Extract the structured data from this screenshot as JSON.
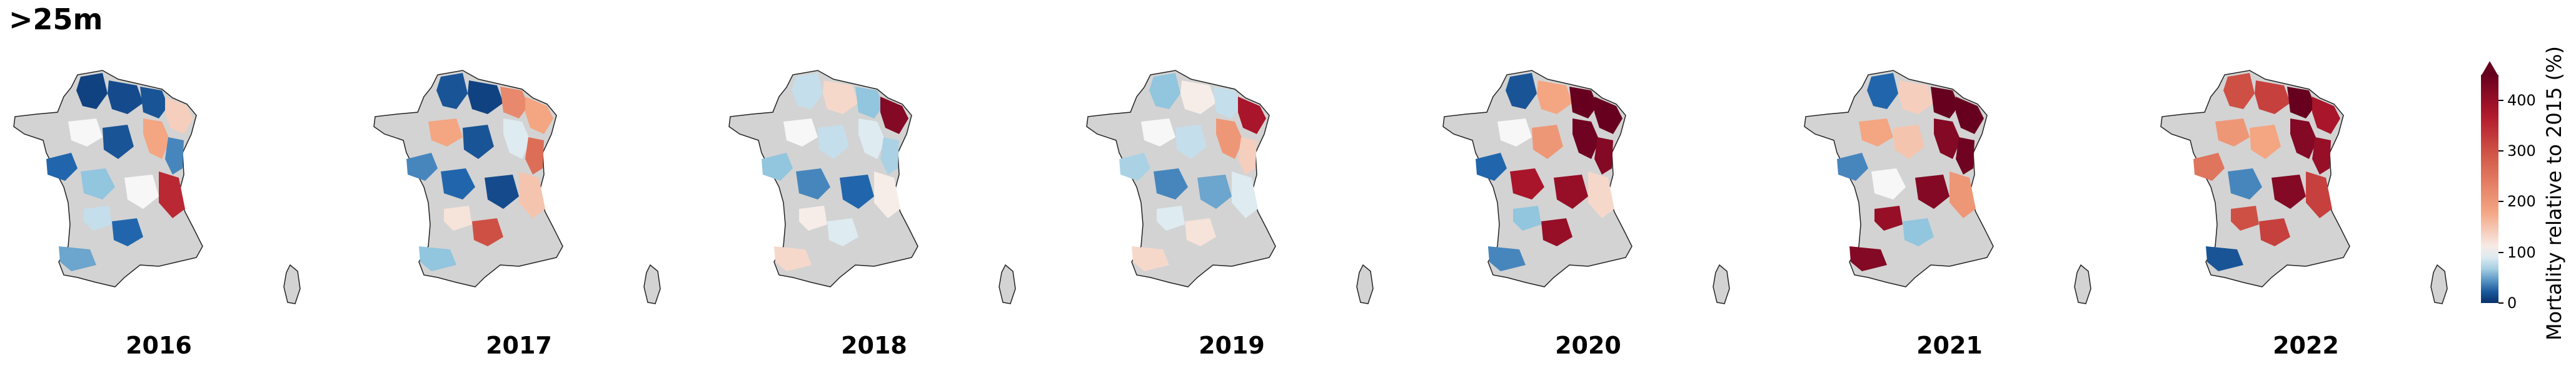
{
  "title": ">25m",
  "panels": [
    {
      "year": "2016",
      "dominant": "mixed-decrease"
    },
    {
      "year": "2017",
      "dominant": "mixed"
    },
    {
      "year": "2018",
      "dominant": "mild-decrease-east-increase"
    },
    {
      "year": "2019",
      "dominant": "mild-decrease-east-increase"
    },
    {
      "year": "2020",
      "dominant": "east-strong-increase"
    },
    {
      "year": "2021",
      "dominant": "east-strong-increase"
    },
    {
      "year": "2022",
      "dominant": "widespread-increase"
    }
  ],
  "colorbar": {
    "label": "Mortality relative to 2015 (%)",
    "ticks": [
      "400",
      "300",
      "200",
      "100",
      "0"
    ],
    "tick_values": [
      400,
      300,
      200,
      100,
      0
    ],
    "min": 0,
    "max": 450,
    "extend": "max",
    "colors": {
      "low": "#08306b",
      "mid": "#f7f7f7",
      "high": "#67001f",
      "land": "#d3d3d3"
    }
  }
}
